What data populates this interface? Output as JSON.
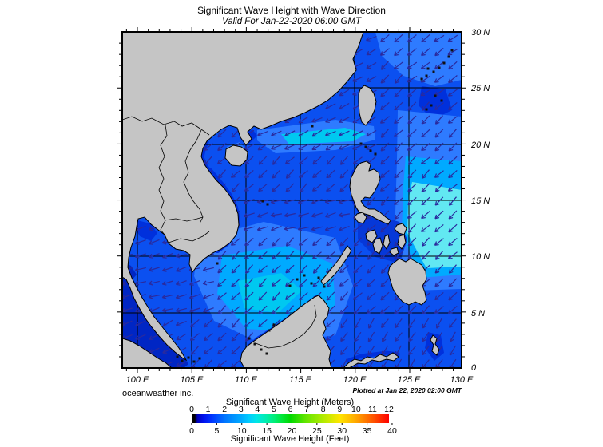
{
  "title": "Significant Wave Height with Wave Direction",
  "subtitle": "Valid For Jan-22-2020 06:00 GMT",
  "credits": {
    "left": "oceanweather inc.",
    "right": "Plotted at Jan 22, 2020 02:00 GMT"
  },
  "axes": {
    "lon_labels": [
      "100 E",
      "105 E",
      "110 E",
      "115 E",
      "120 E",
      "125 E",
      "130 E"
    ],
    "lat_labels": [
      "30 N",
      "25 N",
      "20 N",
      "15 N",
      "10 N",
      "5 N",
      "0"
    ]
  },
  "legend": {
    "meters_label": "Significant Wave Height (Meters)",
    "feet_label": "Significant Wave Height (Feet)",
    "meters_ticks": [
      "0",
      "1",
      "2",
      "3",
      "4",
      "5",
      "6",
      "7",
      "8",
      "9",
      "10",
      "11",
      "12"
    ],
    "feet_ticks": [
      "0",
      "5",
      "10",
      "15",
      "20",
      "25",
      "30",
      "35",
      "40"
    ],
    "gradient_stops": [
      [
        "0%",
        "#000000"
      ],
      [
        "1.5%",
        "#000000"
      ],
      [
        "3%",
        "#0000bb"
      ],
      [
        "6%",
        "#0011ee"
      ],
      [
        "10%",
        "#0033ff"
      ],
      [
        "17%",
        "#0077ff"
      ],
      [
        "25%",
        "#00aaff"
      ],
      [
        "29%",
        "#00ccff"
      ],
      [
        "33%",
        "#00e6e6"
      ],
      [
        "38%",
        "#00eeaa"
      ],
      [
        "42%",
        "#00ee77"
      ],
      [
        "46%",
        "#00e635"
      ],
      [
        "50%",
        "#00d800"
      ],
      [
        "58%",
        "#66e600"
      ],
      [
        "67%",
        "#b4eb00"
      ],
      [
        "75%",
        "#ffe600"
      ],
      [
        "83%",
        "#ffaa00"
      ],
      [
        "92%",
        "#ff5500"
      ],
      [
        "100%",
        "#ff0000"
      ]
    ]
  },
  "map": {
    "land_color": "#c5c5c5",
    "border_color": "#000000",
    "grid_color": "#000000",
    "arrow_color": "#2a2a9d",
    "ocean_colors": {
      "base": "#0b50f0",
      "light": "#2e7bff",
      "lighter": "#00aaff",
      "cyan": "#00c8f0",
      "bright_cyan": "#62e8f2",
      "dark": "#0030dc",
      "darker": "#0026c4",
      "inner": "#0638d8"
    }
  }
}
